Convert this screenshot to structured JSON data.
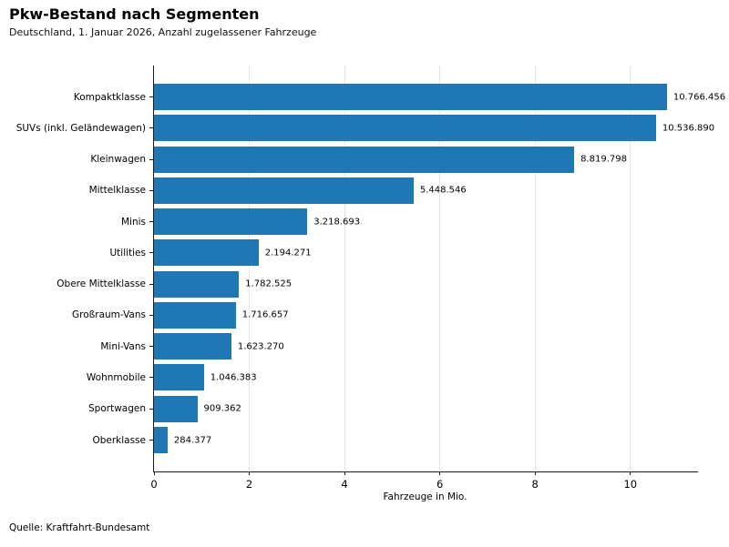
{
  "header": {
    "title": "Pkw-Bestand nach Segmenten",
    "subtitle": "Deutschland, 1. Januar 2026, Anzahl zugelassener Fahrzeuge"
  },
  "footer": {
    "source": "Quelle: Kraftfahrt-Bundesamt"
  },
  "chart_data": {
    "type": "bar",
    "orientation": "horizontal",
    "title": "Pkw-Bestand nach Segmenten",
    "subtitle": "Deutschland, 1. Januar 2026, Anzahl zugelassener Fahrzeuge",
    "xlabel": "Fahrzeuge in Mio.",
    "ylabel": "",
    "xlim": [
      0,
      11.42
    ],
    "xticks": [
      0,
      2,
      4,
      6,
      8,
      10
    ],
    "grid": true,
    "legend": false,
    "bar_color": "#1f77b4",
    "categories": [
      "Kompaktklasse",
      "SUVs (inkl. Geländewagen)",
      "Kleinwagen",
      "Mittelklasse",
      "Minis",
      "Utilities",
      "Obere Mittelklasse",
      "Großraum-Vans",
      "Mini-Vans",
      "Wohnmobile",
      "Sportwagen",
      "Oberklasse"
    ],
    "values": [
      10766456,
      10536890,
      8819798,
      5448546,
      3218693,
      2194271,
      1782525,
      1716657,
      1623270,
      1046383,
      909362,
      284377
    ],
    "value_labels": [
      "10.766.456",
      "10.536.890",
      "8.819.798",
      "5.448.546",
      "3.218.693",
      "2.194.271",
      "1.782.525",
      "1.716.657",
      "1.623.270",
      "1.046.383",
      "909.362",
      "284.377"
    ]
  }
}
